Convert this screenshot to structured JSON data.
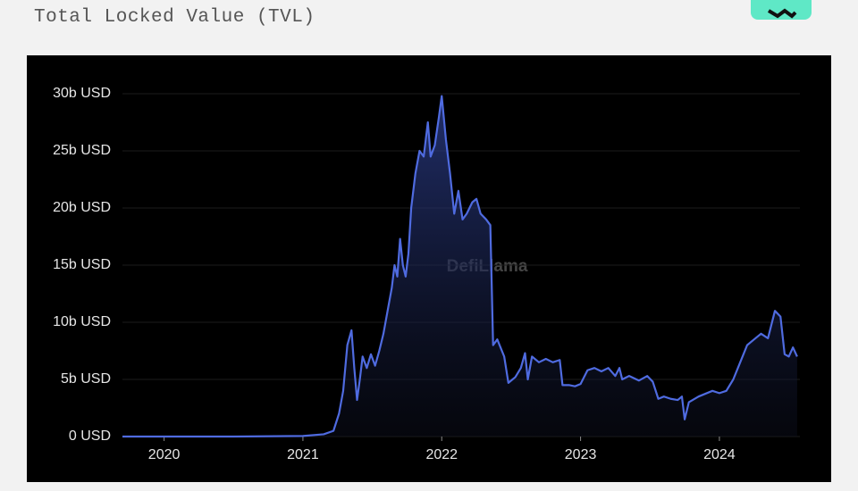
{
  "chart_data": {
    "type": "line",
    "title": "Total Locked Value (TVL)",
    "watermark": "DefiLlama",
    "series": [
      {
        "color": "#4f6be0",
        "x": [
          2019.7,
          2020.5,
          2021.0,
          2021.15,
          2021.22,
          2021.26,
          2021.29,
          2021.32,
          2021.35,
          2021.37,
          2021.39,
          2021.41,
          2021.43,
          2021.46,
          2021.49,
          2021.52,
          2021.55,
          2021.58,
          2021.61,
          2021.64,
          2021.66,
          2021.68,
          2021.7,
          2021.72,
          2021.74,
          2021.76,
          2021.78,
          2021.81,
          2021.84,
          2021.87,
          2021.9,
          2021.92,
          2021.95,
          2021.98,
          2022.0,
          2022.03,
          2022.06,
          2022.09,
          2022.12,
          2022.15,
          2022.18,
          2022.22,
          2022.25,
          2022.28,
          2022.32,
          2022.35,
          2022.37,
          2022.4,
          2022.45,
          2022.48,
          2022.53,
          2022.57,
          2022.6,
          2022.62,
          2022.65,
          2022.7,
          2022.75,
          2022.8,
          2022.85,
          2022.87,
          2022.92,
          2022.96,
          2023.0,
          2023.05,
          2023.1,
          2023.15,
          2023.2,
          2023.25,
          2023.28,
          2023.3,
          2023.35,
          2023.42,
          2023.48,
          2023.52,
          2023.56,
          2023.6,
          2023.65,
          2023.7,
          2023.73,
          2023.75,
          2023.78,
          2023.85,
          2023.95,
          2024.0,
          2024.05,
          2024.1,
          2024.15,
          2024.2,
          2024.25,
          2024.3,
          2024.35,
          2024.4,
          2024.44,
          2024.47,
          2024.5,
          2024.53,
          2024.56
        ],
        "values": [
          0,
          0,
          0.05,
          0.2,
          0.5,
          2,
          4,
          8,
          9.3,
          6,
          3.2,
          5,
          7,
          6,
          7.2,
          6.2,
          7.5,
          9,
          11,
          13,
          15,
          14,
          17.3,
          15,
          14,
          16,
          20,
          23,
          25,
          24.5,
          27.5,
          24.5,
          25.5,
          28,
          29.8,
          26,
          23,
          19.5,
          21.5,
          19,
          19.5,
          20.5,
          20.8,
          19.5,
          19,
          18.5,
          8,
          8.5,
          7,
          4.7,
          5.2,
          6,
          7.3,
          5,
          7,
          6.5,
          6.8,
          6.5,
          6.7,
          4.5,
          4.5,
          4.4,
          4.6,
          5.8,
          6.0,
          5.7,
          6.0,
          5.3,
          6.0,
          5.0,
          5.3,
          4.9,
          5.3,
          4.8,
          3.3,
          3.5,
          3.3,
          3.2,
          3.5,
          1.5,
          3.0,
          3.5,
          4.0,
          3.8,
          4.0,
          5.0,
          6.5,
          8.0,
          8.5,
          9.0,
          8.6,
          11.0,
          10.5,
          7.2,
          7.0,
          7.8,
          7.0
        ]
      }
    ],
    "xlim": [
      2019.7,
      2024.58
    ],
    "xticks": [
      2020,
      2021,
      2022,
      2023,
      2024
    ],
    "ylim": [
      0,
      30
    ],
    "yticks": [
      {
        "value": 0,
        "label": "0 USD"
      },
      {
        "value": 5,
        "label": "5b USD"
      },
      {
        "value": 10,
        "label": "10b USD"
      },
      {
        "value": 15,
        "label": "15b USD"
      },
      {
        "value": 20,
        "label": "20b USD"
      },
      {
        "value": 25,
        "label": "25b USD"
      },
      {
        "value": 30,
        "label": "30b USD"
      }
    ],
    "grid": true
  }
}
